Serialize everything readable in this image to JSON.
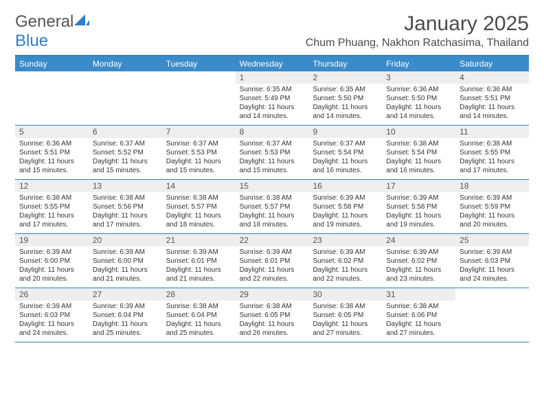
{
  "logo": {
    "general": "General",
    "blue": "Blue"
  },
  "title": "January 2025",
  "location": "Chum Phuang, Nakhon Ratchasima, Thailand",
  "colors": {
    "header_bg": "#3b8bc9",
    "header_border": "#2d7fc1",
    "daynum_bg": "#eeeeee",
    "text": "#333333",
    "logo_blue": "#2d7fc1"
  },
  "typography": {
    "title_fontsize": 30,
    "location_fontsize": 16,
    "header_fontsize": 12,
    "daynum_fontsize": 12,
    "body_fontsize": 10
  },
  "dayNames": [
    "Sunday",
    "Monday",
    "Tuesday",
    "Wednesday",
    "Thursday",
    "Friday",
    "Saturday"
  ],
  "weeks": [
    [
      null,
      null,
      null,
      {
        "n": "1",
        "sr": "6:35 AM",
        "ss": "5:49 PM",
        "dl": "11 hours and 14 minutes."
      },
      {
        "n": "2",
        "sr": "6:35 AM",
        "ss": "5:50 PM",
        "dl": "11 hours and 14 minutes."
      },
      {
        "n": "3",
        "sr": "6:36 AM",
        "ss": "5:50 PM",
        "dl": "11 hours and 14 minutes."
      },
      {
        "n": "4",
        "sr": "6:36 AM",
        "ss": "5:51 PM",
        "dl": "11 hours and 14 minutes."
      }
    ],
    [
      {
        "n": "5",
        "sr": "6:36 AM",
        "ss": "5:51 PM",
        "dl": "11 hours and 15 minutes."
      },
      {
        "n": "6",
        "sr": "6:37 AM",
        "ss": "5:52 PM",
        "dl": "11 hours and 15 minutes."
      },
      {
        "n": "7",
        "sr": "6:37 AM",
        "ss": "5:53 PM",
        "dl": "11 hours and 15 minutes."
      },
      {
        "n": "8",
        "sr": "6:37 AM",
        "ss": "5:53 PM",
        "dl": "11 hours and 15 minutes."
      },
      {
        "n": "9",
        "sr": "6:37 AM",
        "ss": "5:54 PM",
        "dl": "11 hours and 16 minutes."
      },
      {
        "n": "10",
        "sr": "6:38 AM",
        "ss": "5:54 PM",
        "dl": "11 hours and 16 minutes."
      },
      {
        "n": "11",
        "sr": "6:38 AM",
        "ss": "5:55 PM",
        "dl": "11 hours and 17 minutes."
      }
    ],
    [
      {
        "n": "12",
        "sr": "6:38 AM",
        "ss": "5:55 PM",
        "dl": "11 hours and 17 minutes."
      },
      {
        "n": "13",
        "sr": "6:38 AM",
        "ss": "5:56 PM",
        "dl": "11 hours and 17 minutes."
      },
      {
        "n": "14",
        "sr": "6:38 AM",
        "ss": "5:57 PM",
        "dl": "11 hours and 18 minutes."
      },
      {
        "n": "15",
        "sr": "6:38 AM",
        "ss": "5:57 PM",
        "dl": "11 hours and 18 minutes."
      },
      {
        "n": "16",
        "sr": "6:39 AM",
        "ss": "5:58 PM",
        "dl": "11 hours and 19 minutes."
      },
      {
        "n": "17",
        "sr": "6:39 AM",
        "ss": "5:58 PM",
        "dl": "11 hours and 19 minutes."
      },
      {
        "n": "18",
        "sr": "6:39 AM",
        "ss": "5:59 PM",
        "dl": "11 hours and 20 minutes."
      }
    ],
    [
      {
        "n": "19",
        "sr": "6:39 AM",
        "ss": "6:00 PM",
        "dl": "11 hours and 20 minutes."
      },
      {
        "n": "20",
        "sr": "6:39 AM",
        "ss": "6:00 PM",
        "dl": "11 hours and 21 minutes."
      },
      {
        "n": "21",
        "sr": "6:39 AM",
        "ss": "6:01 PM",
        "dl": "11 hours and 21 minutes."
      },
      {
        "n": "22",
        "sr": "6:39 AM",
        "ss": "6:01 PM",
        "dl": "11 hours and 22 minutes."
      },
      {
        "n": "23",
        "sr": "6:39 AM",
        "ss": "6:02 PM",
        "dl": "11 hours and 22 minutes."
      },
      {
        "n": "24",
        "sr": "6:39 AM",
        "ss": "6:02 PM",
        "dl": "11 hours and 23 minutes."
      },
      {
        "n": "25",
        "sr": "6:39 AM",
        "ss": "6:03 PM",
        "dl": "11 hours and 24 minutes."
      }
    ],
    [
      {
        "n": "26",
        "sr": "6:39 AM",
        "ss": "6:03 PM",
        "dl": "11 hours and 24 minutes."
      },
      {
        "n": "27",
        "sr": "6:39 AM",
        "ss": "6:04 PM",
        "dl": "11 hours and 25 minutes."
      },
      {
        "n": "28",
        "sr": "6:38 AM",
        "ss": "6:04 PM",
        "dl": "11 hours and 25 minutes."
      },
      {
        "n": "29",
        "sr": "6:38 AM",
        "ss": "6:05 PM",
        "dl": "11 hours and 26 minutes."
      },
      {
        "n": "30",
        "sr": "6:38 AM",
        "ss": "6:05 PM",
        "dl": "11 hours and 27 minutes."
      },
      {
        "n": "31",
        "sr": "6:38 AM",
        "ss": "6:06 PM",
        "dl": "11 hours and 27 minutes."
      },
      null
    ]
  ],
  "labels": {
    "sunrise": "Sunrise:",
    "sunset": "Sunset:",
    "daylight": "Daylight:"
  }
}
